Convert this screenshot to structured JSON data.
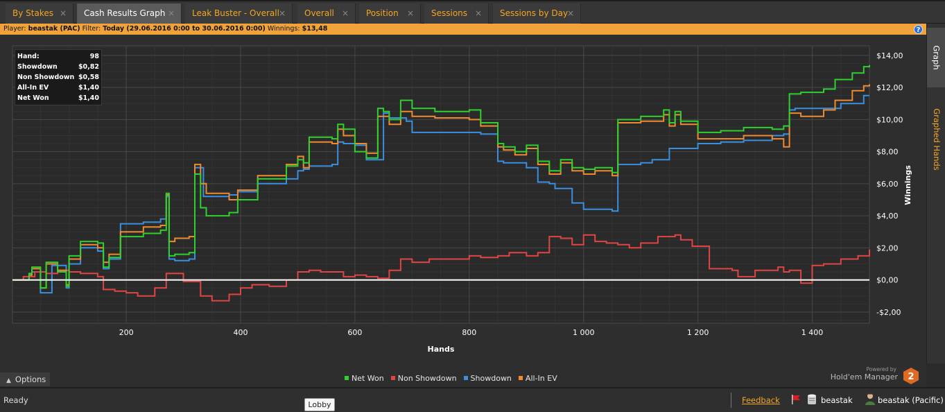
{
  "tabs": [
    {
      "label": "By Stakes",
      "close": "×",
      "active": false
    },
    {
      "label": "Cash Results Graph",
      "close": "×",
      "active": true
    },
    {
      "label": "Leak Buster - Overall",
      "close": "×",
      "active": false
    },
    {
      "label": "Overall",
      "close": "×",
      "active": false
    },
    {
      "label": "Position",
      "close": "×",
      "active": false
    },
    {
      "label": "Sessions",
      "close": "×",
      "active": false
    },
    {
      "label": "Sessions by Day",
      "close": "×",
      "active": false
    }
  ],
  "filter": {
    "player_label": "Player:",
    "player_value": "beastak (PAC)",
    "filter_label": "Filter:",
    "filter_value": "Today (29.06.2016 0:00 to 30.06.2016 0:00)",
    "winnings_label": "Winnings:",
    "winnings_value": "$13,48"
  },
  "help_icon": "?",
  "side_tabs": {
    "graph": "Graph",
    "graphed_hands": "Graphed Hands"
  },
  "info_box": [
    {
      "label": "Hand:",
      "value": "98"
    },
    {
      "label": "Showdown",
      "value": "$0,82"
    },
    {
      "label": "Non Showdown",
      "value": "$0,58"
    },
    {
      "label": "All-In EV",
      "value": "$1,40"
    },
    {
      "label": "Net Won",
      "value": "$1,40"
    }
  ],
  "options_label": "Options",
  "options_icon": "chevron-up-icon",
  "legend": [
    {
      "name": "Net Won",
      "color": "#2fd12f"
    },
    {
      "name": "Non Showdown",
      "color": "#e04545"
    },
    {
      "name": "Showdown",
      "color": "#3a8fe0"
    },
    {
      "name": "All-In EV",
      "color": "#f08a30"
    }
  ],
  "brand": {
    "powered": "Powered by",
    "name": "Hold'em Manager",
    "logo_text": "2"
  },
  "status": {
    "text": "Ready",
    "tooltip": "Lobby",
    "feedback": "Feedback",
    "db_user": "beastak",
    "player": "beastak (Pacific)"
  },
  "chart_data": {
    "type": "line",
    "xlabel": "Hands",
    "ylabel": "Winnings",
    "xlim": [
      1,
      1500
    ],
    "ylim": [
      -2.7,
      14.6
    ],
    "xticks": [
      200,
      400,
      600,
      800,
      1000,
      1200,
      1400
    ],
    "xtick_labels": [
      "200",
      "400",
      "600",
      "800",
      "1 000",
      "1 200",
      "1 400"
    ],
    "yticks": [
      -2,
      0,
      2,
      4,
      6,
      8,
      10,
      12,
      14
    ],
    "ytick_labels": [
      "-$2,00",
      "$0,00",
      "$2,00",
      "$4,00",
      "$6,00",
      "$8,00",
      "$10,00",
      "$12,00",
      "$14,00"
    ],
    "grid": true,
    "legend_position": "bottom-center",
    "series": [
      {
        "name": "Showdown",
        "color": "#3a8fe0",
        "x": [
          1,
          30,
          35,
          50,
          70,
          95,
          100,
          120,
          150,
          160,
          170,
          190,
          230,
          260,
          270,
          275,
          285,
          310,
          320,
          335,
          380,
          395,
          430,
          480,
          500,
          510,
          520,
          560,
          570,
          580,
          600,
          620,
          650,
          660,
          690,
          700,
          800,
          820,
          850,
          860,
          900,
          920,
          940,
          950,
          980,
          1000,
          1020,
          1050,
          1060,
          1100,
          1120,
          1150,
          1200,
          1240,
          1280,
          1330,
          1350,
          1360,
          1370,
          1400,
          1420,
          1450,
          1490,
          1500
        ],
        "y": [
          0,
          0.3,
          0.5,
          -0.8,
          0.9,
          -0.5,
          1.0,
          2.0,
          1.8,
          0.7,
          1.3,
          3.5,
          3.6,
          3.8,
          5.2,
          1.3,
          1.2,
          1.3,
          7.0,
          5.2,
          5.3,
          5.5,
          6.0,
          6.3,
          6.8,
          6.9,
          7.1,
          7.2,
          8.6,
          8.5,
          8.4,
          7.5,
          10.4,
          10.1,
          9.9,
          9.2,
          9.2,
          9.1,
          7.4,
          7.3,
          7.0,
          6.1,
          6.0,
          5.7,
          4.8,
          4.4,
          4.4,
          4.3,
          7.2,
          7.3,
          7.5,
          8.2,
          8.5,
          8.6,
          8.7,
          9.0,
          9.1,
          10.6,
          10.7,
          10.7,
          10.7,
          11.0,
          11.5,
          11.5
        ]
      },
      {
        "name": "Non Showdown",
        "color": "#e04545",
        "x": [
          1,
          20,
          40,
          60,
          80,
          100,
          120,
          150,
          160,
          180,
          200,
          220,
          250,
          270,
          300,
          330,
          350,
          380,
          400,
          420,
          450,
          480,
          500,
          520,
          540,
          560,
          580,
          600,
          620,
          640,
          660,
          680,
          700,
          730,
          760,
          800,
          820,
          850,
          870,
          900,
          920,
          940,
          960,
          980,
          1000,
          1020,
          1040,
          1060,
          1080,
          1100,
          1130,
          1160,
          1170,
          1190,
          1220,
          1260,
          1270,
          1300,
          1340,
          1350,
          1360,
          1380,
          1400,
          1420,
          1450,
          1480,
          1500
        ],
        "y": [
          0,
          0.2,
          0.5,
          0.4,
          0.6,
          0.5,
          0.4,
          0.2,
          -0.6,
          -0.7,
          -0.8,
          -1.0,
          -0.5,
          0.4,
          -0.1,
          -1.0,
          -1.3,
          -0.9,
          -0.5,
          -0.3,
          -0.4,
          0.0,
          0.5,
          0.6,
          0.5,
          0.5,
          0.2,
          0.3,
          0.2,
          0.1,
          0.6,
          1.3,
          1.1,
          1.3,
          1.3,
          1.5,
          1.4,
          1.5,
          1.7,
          1.5,
          1.7,
          2.7,
          2.6,
          2.2,
          2.8,
          2.4,
          2.3,
          2.2,
          2.0,
          2.3,
          2.7,
          2.8,
          2.5,
          2.1,
          0.7,
          0.6,
          0.2,
          0.6,
          0.8,
          0.5,
          0.6,
          -0.2,
          0.9,
          1.0,
          1.3,
          1.5,
          1.9
        ]
      },
      {
        "name": "All-In EV",
        "color": "#f08a30",
        "x": [
          1,
          30,
          35,
          50,
          60,
          80,
          95,
          100,
          120,
          150,
          160,
          170,
          190,
          230,
          260,
          270,
          275,
          285,
          310,
          320,
          330,
          340,
          380,
          395,
          430,
          480,
          500,
          510,
          520,
          560,
          570,
          580,
          600,
          620,
          640,
          650,
          660,
          680,
          700,
          740,
          800,
          820,
          850,
          860,
          880,
          900,
          920,
          940,
          960,
          980,
          1000,
          1020,
          1050,
          1060,
          1100,
          1140,
          1150,
          1160,
          1170,
          1200,
          1240,
          1280,
          1330,
          1350,
          1360,
          1380,
          1420,
          1440,
          1470,
          1490,
          1500
        ],
        "y": [
          0,
          0.3,
          0.7,
          -0.5,
          1.0,
          0.6,
          -0.3,
          1.3,
          2.2,
          2.0,
          1.1,
          1.6,
          3.0,
          3.3,
          3.4,
          5.3,
          2.4,
          2.6,
          2.7,
          7.2,
          6.0,
          5.4,
          5.0,
          5.6,
          6.5,
          7.2,
          7.7,
          7.0,
          8.6,
          8.5,
          9.4,
          9.0,
          8.5,
          7.9,
          10.2,
          10.2,
          9.7,
          10.5,
          10.2,
          10.1,
          10.0,
          9.6,
          8.3,
          8.1,
          7.8,
          8.2,
          7.2,
          6.6,
          7.3,
          6.8,
          6.6,
          6.8,
          6.5,
          9.8,
          9.9,
          10.3,
          9.6,
          10.3,
          9.7,
          8.8,
          8.8,
          9.0,
          8.8,
          8.3,
          10.4,
          10.2,
          10.6,
          11.2,
          11.8,
          12.1,
          12.2
        ]
      },
      {
        "name": "Net Won",
        "color": "#2fd12f",
        "x": [
          1,
          30,
          35,
          50,
          60,
          80,
          95,
          100,
          120,
          150,
          160,
          170,
          190,
          230,
          260,
          270,
          275,
          285,
          310,
          320,
          330,
          340,
          380,
          395,
          430,
          480,
          500,
          510,
          520,
          560,
          570,
          580,
          600,
          620,
          640,
          650,
          660,
          680,
          700,
          740,
          800,
          820,
          850,
          860,
          880,
          900,
          920,
          940,
          960,
          980,
          1000,
          1020,
          1050,
          1060,
          1100,
          1140,
          1150,
          1160,
          1170,
          1200,
          1240,
          1280,
          1330,
          1350,
          1360,
          1380,
          1420,
          1440,
          1470,
          1490,
          1500
        ],
        "y": [
          0,
          0.4,
          0.8,
          -0.5,
          1.1,
          0.5,
          -0.4,
          1.5,
          2.4,
          2.3,
          0.8,
          1.4,
          2.7,
          2.9,
          3.1,
          5.4,
          1.5,
          1.6,
          1.7,
          6.6,
          4.5,
          4.0,
          4.2,
          5.0,
          6.3,
          7.1,
          7.5,
          7.3,
          8.9,
          8.8,
          9.7,
          9.4,
          8.0,
          7.6,
          10.7,
          10.5,
          10.0,
          11.2,
          10.7,
          10.5,
          10.6,
          9.8,
          8.5,
          8.3,
          8.0,
          8.4,
          7.4,
          6.8,
          7.5,
          7.0,
          6.9,
          7.0,
          6.7,
          10.0,
          10.2,
          10.6,
          9.8,
          10.5,
          9.9,
          9.2,
          9.3,
          9.5,
          9.4,
          9.6,
          11.6,
          11.7,
          11.9,
          12.5,
          12.9,
          13.3,
          13.4
        ]
      }
    ]
  }
}
